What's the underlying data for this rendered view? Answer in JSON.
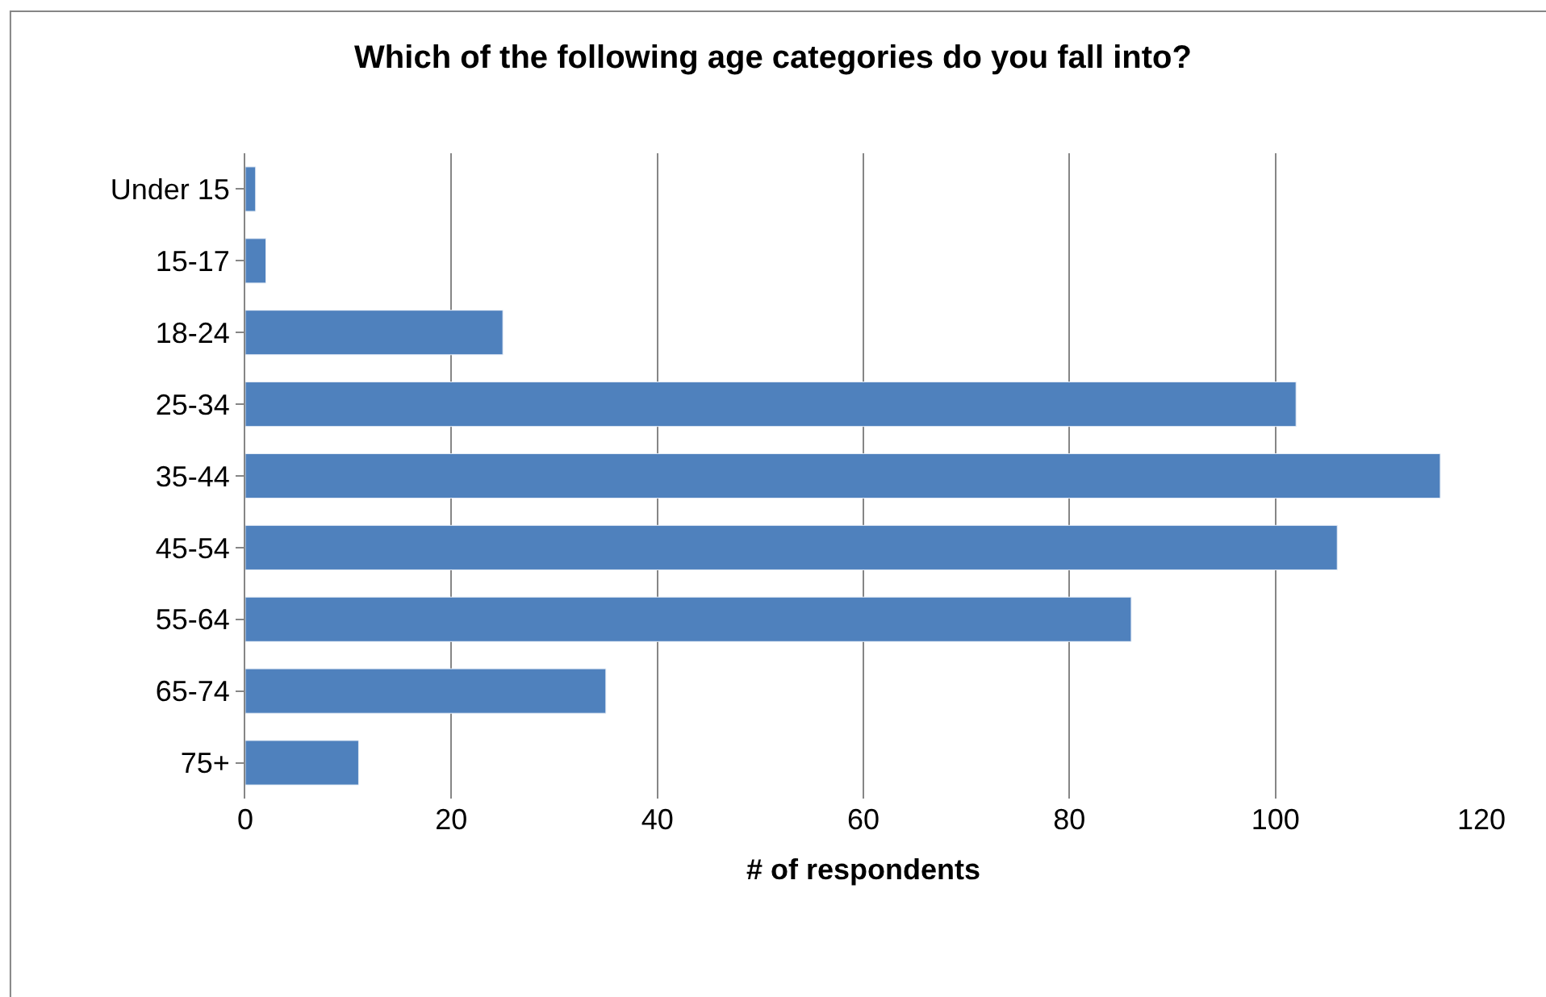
{
  "chart_data": {
    "type": "bar",
    "orientation": "horizontal",
    "title": "Which of the following age categories do you fall into?",
    "xlabel": "# of respondents",
    "categories": [
      "Under 15",
      "15-17",
      "18-24",
      "25-34",
      "35-44",
      "45-54",
      "55-64",
      "65-74",
      "75+"
    ],
    "values": [
      1,
      2,
      25,
      102,
      116,
      106,
      86,
      35,
      11
    ],
    "color": "#4f81bd",
    "xlim": [
      0,
      120
    ],
    "xticks": [
      0,
      20,
      40,
      60,
      80,
      100,
      120
    ],
    "grid": "x"
  }
}
